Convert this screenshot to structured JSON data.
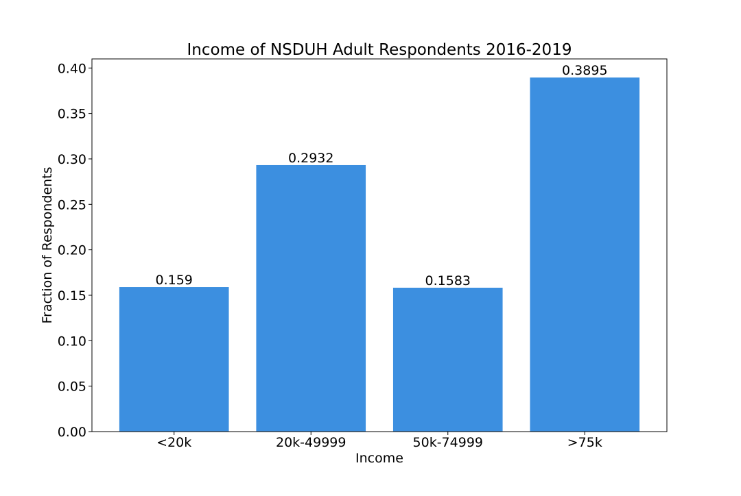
{
  "chart_data": {
    "type": "bar",
    "title": "Income of NSDUH Adult Respondents 2016-2019",
    "xlabel": "Income",
    "ylabel": "Fraction of Respondents",
    "categories": [
      "<20k",
      "20k-49999",
      "50k-74999",
      ">75k"
    ],
    "values": [
      0.159,
      0.2932,
      0.1583,
      0.3895
    ],
    "data_labels": [
      "0.159",
      "0.2932",
      "0.1583",
      "0.3895"
    ],
    "ylim": [
      0,
      0.41
    ],
    "yticks": [
      0.0,
      0.05,
      0.1,
      0.15,
      0.2,
      0.25,
      0.3,
      0.35,
      0.4
    ],
    "ytick_labels": [
      "0.00",
      "0.05",
      "0.10",
      "0.15",
      "0.20",
      "0.25",
      "0.30",
      "0.35",
      "0.40"
    ],
    "bar_color": "#3c8fe0",
    "grid": false,
    "legend": "none"
  }
}
